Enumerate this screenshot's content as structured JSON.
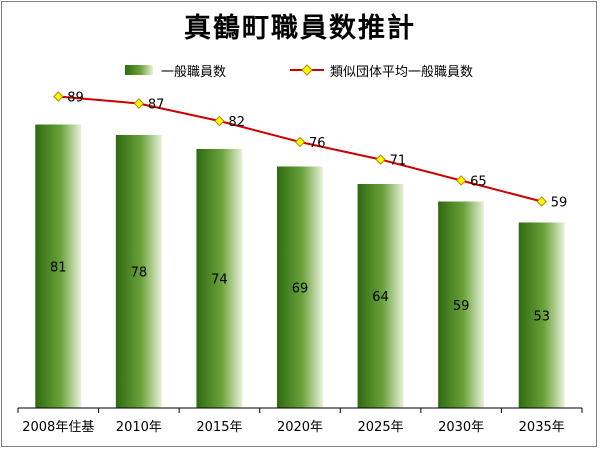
{
  "chart_data": {
    "type": "bar",
    "title": "真鶴町職員数推計",
    "categories": [
      "2008年住基",
      "2010年",
      "2015年",
      "2020年",
      "2025年",
      "2030年",
      "2035年"
    ],
    "series": [
      {
        "name": "一般職員数",
        "type": "bar",
        "values": [
          81,
          78,
          74,
          69,
          64,
          59,
          53
        ]
      },
      {
        "name": "類似団体平均一般職員数",
        "type": "line",
        "values": [
          89,
          87,
          82,
          76,
          71,
          65,
          59
        ]
      }
    ],
    "ylim": [
      0,
      100
    ],
    "grid": false,
    "legend_position": "top",
    "colors": {
      "bar_dark": "#2f6a12",
      "bar_mid": "#6aa23a",
      "bar_light": "#e9f2dc",
      "line": "#cc0000",
      "marker_fill": "#ffff00",
      "marker_stroke": "#b8860b"
    }
  }
}
